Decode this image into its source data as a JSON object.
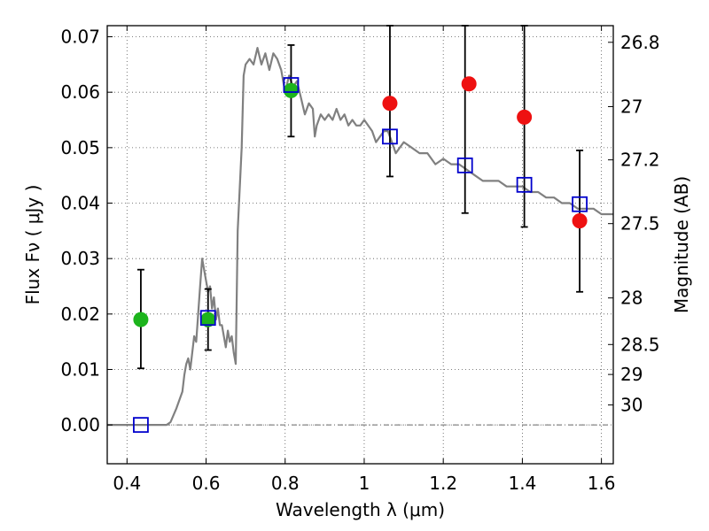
{
  "chart_data": {
    "type": "scatter",
    "xlabel": "Wavelength  λ (μm)",
    "ylabel": "Flux  Fν  ( μJy )",
    "y2label": "Magnitude (AB)",
    "xlim": [
      0.35,
      1.63
    ],
    "ylim": [
      -0.007,
      0.072
    ],
    "grid": true,
    "x_ticks": [
      {
        "value": 0.4,
        "label": "0.4"
      },
      {
        "value": 0.6,
        "label": "0.6"
      },
      {
        "value": 0.8,
        "label": "0.8"
      },
      {
        "value": 1.0,
        "label": "1"
      },
      {
        "value": 1.2,
        "label": "1.2"
      },
      {
        "value": 1.4,
        "label": "1.4"
      },
      {
        "value": 1.6,
        "label": "1.6"
      }
    ],
    "y_ticks": [
      {
        "value": 0.0,
        "label": "0.00"
      },
      {
        "value": 0.01,
        "label": "0.01"
      },
      {
        "value": 0.02,
        "label": "0.02"
      },
      {
        "value": 0.03,
        "label": "0.03"
      },
      {
        "value": 0.04,
        "label": "0.04"
      },
      {
        "value": 0.05,
        "label": "0.05"
      },
      {
        "value": 0.06,
        "label": "0.06"
      },
      {
        "value": 0.07,
        "label": "0.07"
      }
    ],
    "y2_ticks": [
      {
        "label": "26.8",
        "flux": 0.069
      },
      {
        "label": "27",
        "flux": 0.0574
      },
      {
        "label": "27.2",
        "flux": 0.0478
      },
      {
        "label": "27.5",
        "flux": 0.0363
      },
      {
        "label": "28",
        "flux": 0.0229
      },
      {
        "label": "28.5",
        "flux": 0.0145
      },
      {
        "label": "29",
        "flux": 0.0091
      },
      {
        "label": "30",
        "flux": 0.0036
      }
    ],
    "series": [
      {
        "kind": "line",
        "color": "#808080",
        "points": [
          [
            0.35,
            0.0
          ],
          [
            0.5,
            0.0
          ],
          [
            0.51,
            0.0005
          ],
          [
            0.525,
            0.003
          ],
          [
            0.54,
            0.006
          ],
          [
            0.545,
            0.009
          ],
          [
            0.55,
            0.011
          ],
          [
            0.555,
            0.012
          ],
          [
            0.56,
            0.01
          ],
          [
            0.565,
            0.013
          ],
          [
            0.57,
            0.016
          ],
          [
            0.575,
            0.015
          ],
          [
            0.58,
            0.02
          ],
          [
            0.585,
            0.025
          ],
          [
            0.59,
            0.03
          ],
          [
            0.595,
            0.028
          ],
          [
            0.6,
            0.026
          ],
          [
            0.605,
            0.024
          ],
          [
            0.61,
            0.025
          ],
          [
            0.615,
            0.021
          ],
          [
            0.62,
            0.023
          ],
          [
            0.625,
            0.019
          ],
          [
            0.63,
            0.021
          ],
          [
            0.635,
            0.018
          ],
          [
            0.64,
            0.018
          ],
          [
            0.645,
            0.016
          ],
          [
            0.65,
            0.014
          ],
          [
            0.655,
            0.017
          ],
          [
            0.66,
            0.015
          ],
          [
            0.665,
            0.016
          ],
          [
            0.67,
            0.013
          ],
          [
            0.675,
            0.011
          ],
          [
            0.68,
            0.035
          ],
          [
            0.69,
            0.05
          ],
          [
            0.695,
            0.063
          ],
          [
            0.7,
            0.065
          ],
          [
            0.71,
            0.066
          ],
          [
            0.72,
            0.065
          ],
          [
            0.73,
            0.068
          ],
          [
            0.74,
            0.065
          ],
          [
            0.75,
            0.067
          ],
          [
            0.76,
            0.064
          ],
          [
            0.77,
            0.067
          ],
          [
            0.78,
            0.066
          ],
          [
            0.79,
            0.064
          ],
          [
            0.8,
            0.06
          ],
          [
            0.81,
            0.063
          ],
          [
            0.82,
            0.061
          ],
          [
            0.83,
            0.062
          ],
          [
            0.84,
            0.059
          ],
          [
            0.85,
            0.056
          ],
          [
            0.86,
            0.058
          ],
          [
            0.87,
            0.057
          ],
          [
            0.875,
            0.052
          ],
          [
            0.88,
            0.054
          ],
          [
            0.89,
            0.056
          ],
          [
            0.9,
            0.055
          ],
          [
            0.91,
            0.056
          ],
          [
            0.92,
            0.055
          ],
          [
            0.93,
            0.057
          ],
          [
            0.94,
            0.055
          ],
          [
            0.95,
            0.056
          ],
          [
            0.96,
            0.054
          ],
          [
            0.97,
            0.055
          ],
          [
            0.98,
            0.054
          ],
          [
            0.99,
            0.054
          ],
          [
            1.0,
            0.055
          ],
          [
            1.01,
            0.054
          ],
          [
            1.02,
            0.053
          ],
          [
            1.03,
            0.051
          ],
          [
            1.04,
            0.052
          ],
          [
            1.05,
            0.053
          ],
          [
            1.06,
            0.053
          ],
          [
            1.07,
            0.051
          ],
          [
            1.08,
            0.049
          ],
          [
            1.09,
            0.05
          ],
          [
            1.1,
            0.051
          ],
          [
            1.12,
            0.05
          ],
          [
            1.14,
            0.049
          ],
          [
            1.16,
            0.049
          ],
          [
            1.18,
            0.047
          ],
          [
            1.2,
            0.048
          ],
          [
            1.22,
            0.047
          ],
          [
            1.24,
            0.047
          ],
          [
            1.26,
            0.046
          ],
          [
            1.28,
            0.045
          ],
          [
            1.3,
            0.044
          ],
          [
            1.32,
            0.044
          ],
          [
            1.34,
            0.044
          ],
          [
            1.36,
            0.043
          ],
          [
            1.38,
            0.043
          ],
          [
            1.4,
            0.043
          ],
          [
            1.42,
            0.042
          ],
          [
            1.44,
            0.042
          ],
          [
            1.46,
            0.041
          ],
          [
            1.48,
            0.041
          ],
          [
            1.5,
            0.04
          ],
          [
            1.52,
            0.04
          ],
          [
            1.54,
            0.039
          ],
          [
            1.56,
            0.039
          ],
          [
            1.58,
            0.039
          ],
          [
            1.6,
            0.038
          ],
          [
            1.63,
            0.038
          ]
        ]
      },
      {
        "kind": "errorbar",
        "color": "#000000",
        "points": [
          {
            "x": 0.435,
            "ylow": 0.0102,
            "yhigh": 0.028
          },
          {
            "x": 0.605,
            "ylow": 0.0135,
            "yhigh": 0.0245
          },
          {
            "x": 0.815,
            "ylow": 0.052,
            "yhigh": 0.0685
          },
          {
            "x": 1.065,
            "ylow": 0.0448,
            "yhigh": 0.072
          },
          {
            "x": 1.255,
            "ylow": 0.0382,
            "yhigh": 0.072
          },
          {
            "x": 1.405,
            "ylow": 0.0357,
            "yhigh": 0.072
          },
          {
            "x": 1.545,
            "ylow": 0.024,
            "yhigh": 0.0495
          }
        ]
      },
      {
        "kind": "circle",
        "color": "#1db41d",
        "points": [
          [
            0.435,
            0.019
          ],
          [
            0.605,
            0.019
          ],
          [
            0.815,
            0.0603
          ]
        ]
      },
      {
        "kind": "circle",
        "color": "#ee1111",
        "points": [
          [
            1.065,
            0.058
          ],
          [
            1.265,
            0.0615
          ],
          [
            1.405,
            0.0555
          ],
          [
            1.545,
            0.0368
          ]
        ]
      },
      {
        "kind": "square",
        "color": "#0000cc",
        "points": [
          [
            0.435,
            0.0
          ],
          [
            0.605,
            0.0193
          ],
          [
            0.815,
            0.0613
          ],
          [
            1.065,
            0.052
          ],
          [
            1.255,
            0.0468
          ],
          [
            1.405,
            0.0433
          ],
          [
            1.545,
            0.0398
          ]
        ]
      }
    ]
  }
}
